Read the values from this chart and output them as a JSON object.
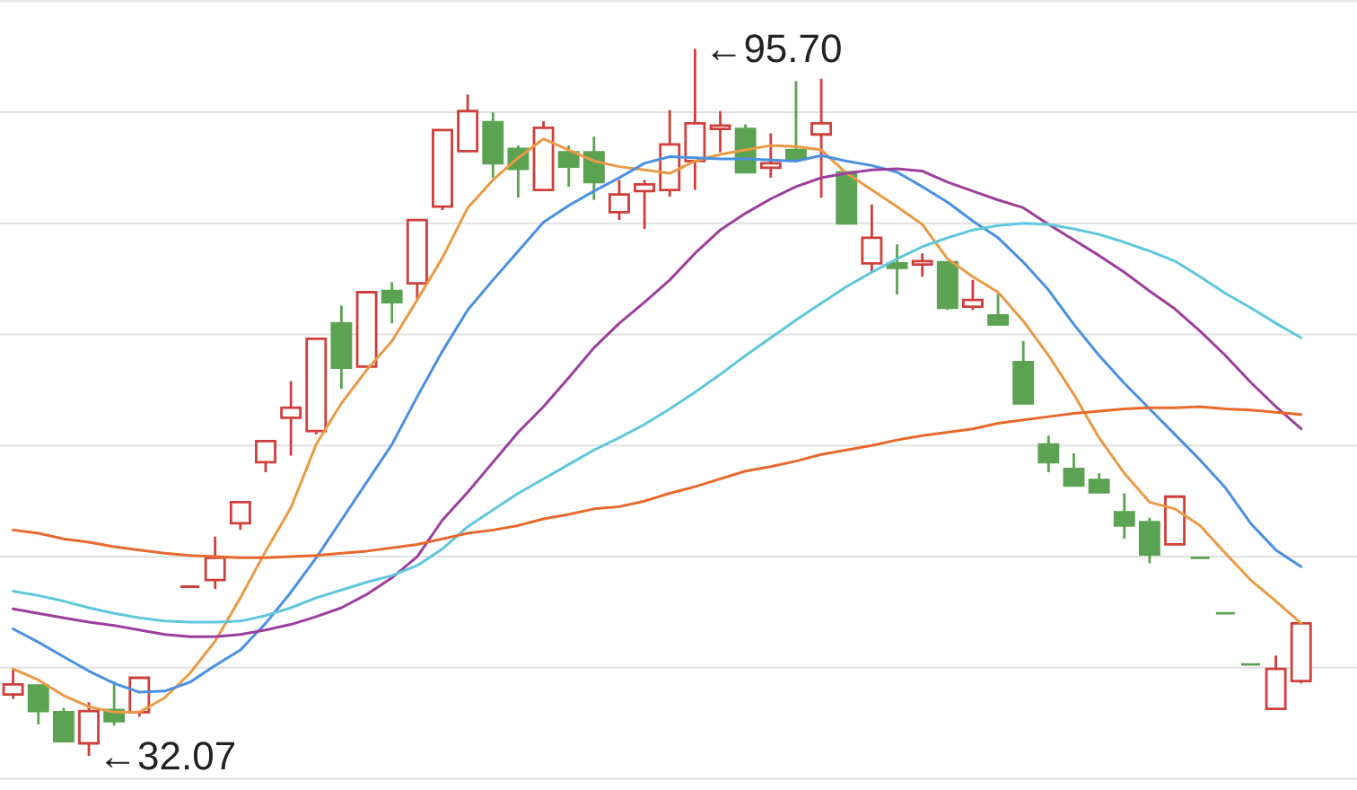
{
  "chart_data": {
    "type": "candlestick",
    "categories": [
      null,
      null,
      null,
      null,
      null,
      null,
      null,
      null,
      null,
      null,
      null,
      null,
      null,
      null,
      null,
      null,
      null,
      null,
      null,
      null,
      null,
      null,
      null,
      null,
      null,
      null,
      null,
      null,
      null,
      null,
      null,
      null,
      null,
      null,
      null,
      null,
      null,
      null,
      null,
      null,
      null,
      null,
      null,
      null,
      null,
      null,
      null,
      null,
      null,
      null,
      null,
      null
    ],
    "ohlc": [
      [
        37.6,
        39.9,
        37.2,
        38.5
      ],
      [
        38.4,
        38.5,
        34.9,
        36.1
      ],
      [
        36.0,
        36.4,
        33.4,
        33.4
      ],
      [
        33.2,
        36.9,
        32.07,
        36.1
      ],
      [
        36.2,
        38.8,
        34.8,
        35.2
      ],
      [
        36.0,
        39.1,
        35.6,
        39.1
      ],
      null,
      [
        47.3,
        47.3,
        47.3,
        47.3
      ],
      [
        47.9,
        51.8,
        47.1,
        49.9
      ],
      [
        53.0,
        54.9,
        52.4,
        54.9
      ],
      [
        58.5,
        60.4,
        57.6,
        60.4
      ],
      [
        62.5,
        65.8,
        59.1,
        63.4
      ],
      [
        61.3,
        69.6,
        61.0,
        69.6
      ],
      [
        71.0,
        72.6,
        65.1,
        67.0
      ],
      [
        67.1,
        73.8,
        67.1,
        73.8
      ],
      [
        73.9,
        74.7,
        71.0,
        72.9
      ],
      [
        74.6,
        80.3,
        73.1,
        80.3
      ],
      [
        81.5,
        88.4,
        81.2,
        88.4
      ],
      [
        86.5,
        91.6,
        86.5,
        90.1
      ],
      [
        89.1,
        90.0,
        84.1,
        85.4
      ],
      [
        86.7,
        87.0,
        82.3,
        84.9
      ],
      [
        83.0,
        89.2,
        83.0,
        88.6
      ],
      [
        86.4,
        87.0,
        83.3,
        85.1
      ],
      [
        86.4,
        87.8,
        82.1,
        83.7
      ],
      [
        81.0,
        83.9,
        80.3,
        82.6
      ],
      [
        82.9,
        83.9,
        79.5,
        83.5
      ],
      [
        83.0,
        90.2,
        82.4,
        87.1
      ],
      [
        85.6,
        95.7,
        83.0,
        89.0
      ],
      [
        88.5,
        90.1,
        86.4,
        88.8
      ],
      [
        88.5,
        88.9,
        84.5,
        84.6
      ],
      [
        85.0,
        88.1,
        84.1,
        85.4
      ],
      [
        86.6,
        92.8,
        85.8,
        85.8
      ],
      [
        88.0,
        93.0,
        82.3,
        89.0
      ],
      [
        84.6,
        84.6,
        80.0,
        80.0
      ],
      [
        76.4,
        81.7,
        75.6,
        78.7
      ],
      [
        76.4,
        78.1,
        73.6,
        76.0
      ],
      [
        76.3,
        77.3,
        75.2,
        76.6
      ],
      [
        76.5,
        76.5,
        72.2,
        72.4
      ],
      [
        72.5,
        74.9,
        72.2,
        73.1
      ],
      [
        71.7,
        73.7,
        70.9,
        70.9
      ],
      [
        67.5,
        69.4,
        63.8,
        63.8
      ],
      [
        60.1,
        60.9,
        57.6,
        58.5
      ],
      [
        57.9,
        59.3,
        56.4,
        56.4
      ],
      [
        56.9,
        57.5,
        55.8,
        55.8
      ],
      [
        54.0,
        55.7,
        51.6,
        52.8
      ],
      [
        53.1,
        53.5,
        49.4,
        50.2
      ],
      [
        51.1,
        55.4,
        51.1,
        55.4
      ],
      [
        49.9,
        49.9,
        49.9,
        49.9
      ],
      [
        44.9,
        44.9,
        44.9,
        44.9
      ],
      [
        40.3,
        40.3,
        40.3,
        40.3
      ],
      [
        36.3,
        41.1,
        36.3,
        39.9
      ],
      [
        38.8,
        44.0,
        38.6,
        44.0
      ]
    ],
    "colors": [
      "#cf3f3b",
      "#5ba353",
      "#5ba353",
      "#cf3f3b",
      "#5ba353",
      "#cf3f3b",
      null,
      "#cf3f3b",
      "#cf3f3b",
      "#cf3f3b",
      "#cf3f3b",
      "#cf3f3b",
      "#cf3f3b",
      "#5ba353",
      "#cf3f3b",
      "#5ba353",
      "#cf3f3b",
      "#cf3f3b",
      "#cf3f3b",
      "#5ba353",
      "#5ba353",
      "#cf3f3b",
      "#5ba353",
      "#5ba353",
      "#cf3f3b",
      "#cf3f3b",
      "#cf3f3b",
      "#cf3f3b",
      "#cf3f3b",
      "#5ba353",
      "#cf3f3b",
      "#5ba353",
      "#cf3f3b",
      "#5ba353",
      "#cf3f3b",
      "#5ba353",
      "#cf3f3b",
      "#5ba353",
      "#cf3f3b",
      "#5ba353",
      "#5ba353",
      "#5ba353",
      "#5ba353",
      "#5ba353",
      "#5ba353",
      "#5ba353",
      "#cf3f3b",
      "#5ba353",
      "#5ba353",
      "#5ba353",
      "#cf3f3b",
      "#cf3f3b"
    ],
    "series": [
      {
        "type": "line",
        "color": "#ea9a45",
        "values": [
          39.9,
          38.9,
          37.5,
          36.5,
          36.0,
          36.0,
          37.3,
          39.5,
          42.4,
          46.3,
          50.5,
          54.4,
          60.1,
          63.8,
          66.8,
          69.4,
          73.1,
          76.9,
          81.4,
          83.9,
          85.9,
          87.6,
          86.6,
          85.6,
          85.1,
          84.8,
          84.5,
          85.6,
          86.2,
          86.6,
          87.0,
          86.9,
          86.6,
          84.5,
          83.0,
          81.5,
          79.9,
          76.8,
          75.2,
          73.8,
          71.2,
          68.1,
          64.6,
          60.7,
          57.5,
          54.9,
          54.3,
          52.8,
          50.3,
          47.9,
          46.0,
          44.0
        ]
      },
      {
        "type": "line",
        "color": "#4a90e2",
        "values": [
          43.5,
          42.3,
          41.0,
          39.7,
          38.6,
          37.8,
          37.9,
          38.7,
          40.2,
          41.6,
          44.0,
          46.8,
          49.9,
          53.3,
          56.7,
          60.1,
          64.4,
          68.5,
          72.2,
          74.9,
          77.5,
          80.1,
          81.6,
          82.9,
          84.1,
          85.4,
          86.0,
          85.9,
          85.8,
          85.8,
          85.7,
          85.6,
          86.1,
          85.6,
          85.2,
          84.6,
          83.3,
          81.9,
          80.2,
          78.7,
          76.5,
          74.0,
          70.9,
          68.1,
          65.6,
          63.3,
          61.0,
          58.7,
          56.2,
          53.0,
          50.6,
          49.1
        ]
      },
      {
        "type": "line",
        "color": "#9c3f9c",
        "values": [
          45.3,
          44.9,
          44.5,
          44.1,
          43.8,
          43.4,
          43.0,
          42.8,
          42.8,
          43.0,
          43.4,
          43.9,
          44.6,
          45.4,
          46.6,
          48.1,
          50.0,
          53.3,
          55.8,
          58.5,
          61.2,
          63.5,
          66.1,
          68.8,
          71.0,
          72.9,
          74.9,
          77.3,
          79.4,
          80.9,
          82.2,
          83.3,
          84.1,
          84.5,
          84.8,
          84.9,
          84.7,
          83.7,
          82.9,
          82.1,
          81.4,
          79.9,
          78.5,
          77.1,
          75.6,
          73.9,
          72.3,
          70.3,
          68.1,
          65.7,
          63.5,
          61.5
        ]
      },
      {
        "type": "line",
        "color": "#5fc7dc",
        "values": [
          46.9,
          46.5,
          46.0,
          45.4,
          44.9,
          44.5,
          44.2,
          44.1,
          44.1,
          44.2,
          44.7,
          45.4,
          46.3,
          47.0,
          47.7,
          48.3,
          49.2,
          50.7,
          52.7,
          54.2,
          55.7,
          57.0,
          58.3,
          59.6,
          60.7,
          61.9,
          63.3,
          64.8,
          66.4,
          68.1,
          69.7,
          71.3,
          72.8,
          74.3,
          75.6,
          76.8,
          77.9,
          78.7,
          79.4,
          79.8,
          80.0,
          79.9,
          79.5,
          79.0,
          78.3,
          77.5,
          76.6,
          75.2,
          73.7,
          72.4,
          71.0,
          69.7
        ]
      },
      {
        "type": "line",
        "color": "#e8692d",
        "values": [
          52.4,
          52.1,
          51.6,
          51.3,
          50.9,
          50.6,
          50.3,
          50.1,
          50.0,
          49.9,
          49.9,
          50.0,
          50.1,
          50.3,
          50.5,
          50.8,
          51.1,
          51.6,
          52.1,
          52.4,
          52.8,
          53.4,
          53.8,
          54.3,
          54.5,
          55.0,
          55.7,
          56.3,
          57.0,
          57.7,
          58.1,
          58.6,
          59.2,
          59.6,
          60.0,
          60.5,
          60.9,
          61.2,
          61.5,
          62.0,
          62.3,
          62.6,
          62.9,
          63.1,
          63.3,
          63.4,
          63.4,
          63.5,
          63.3,
          63.2,
          63.0,
          62.8
        ]
      }
    ],
    "ylim": [
      29,
      100
    ],
    "yticks": [
      {
        "value": 30,
        "label": null
      },
      {
        "value": 40,
        "label": null
      },
      {
        "value": 50,
        "label": null
      },
      {
        "value": 60,
        "label": null
      },
      {
        "value": 70,
        "label": null
      },
      {
        "value": 80,
        "label": null
      },
      {
        "value": 90,
        "label": null
      },
      {
        "value": 100,
        "label": null
      }
    ],
    "grid": "y",
    "tick_labels": false,
    "annotations": [
      "←95.70",
      "←32.07"
    ]
  }
}
